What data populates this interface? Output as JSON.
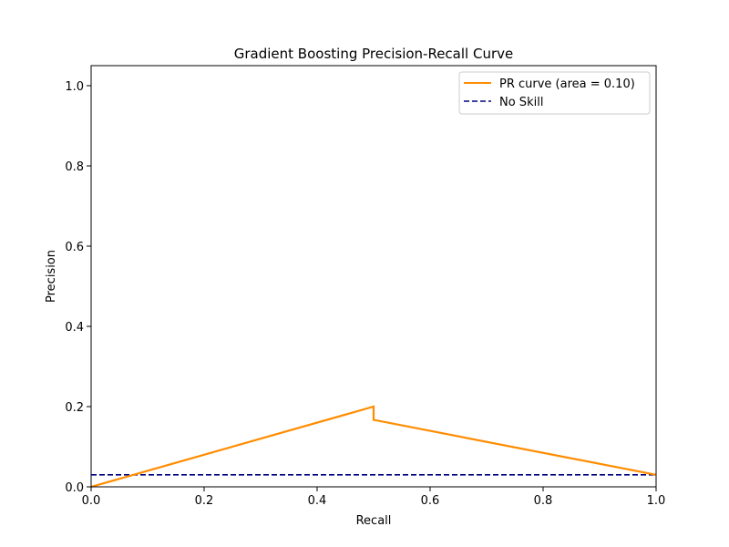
{
  "chart_data": {
    "type": "line",
    "title": "Gradient Boosting Precision-Recall Curve",
    "xlabel": "Recall",
    "ylabel": "Precision",
    "xlim": [
      0.0,
      1.0
    ],
    "ylim": [
      0.0,
      1.05
    ],
    "xticks": [
      "0.0",
      "0.2",
      "0.4",
      "0.6",
      "0.8",
      "1.0"
    ],
    "yticks": [
      "0.0",
      "0.2",
      "0.4",
      "0.6",
      "0.8",
      "1.0"
    ],
    "grid": false,
    "legend_position": "top-right",
    "series": [
      {
        "name": "PR curve (area = 0.10)",
        "color": "#ff8c00",
        "style": "solid",
        "x": [
          0.0,
          0.5,
          0.5,
          1.0
        ],
        "y": [
          0.0,
          0.2,
          0.167,
          0.03
        ]
      },
      {
        "name": "No Skill",
        "color": "#000080",
        "style": "dashed",
        "x": [
          0.0,
          1.0
        ],
        "y": [
          0.03,
          0.03
        ]
      }
    ]
  }
}
